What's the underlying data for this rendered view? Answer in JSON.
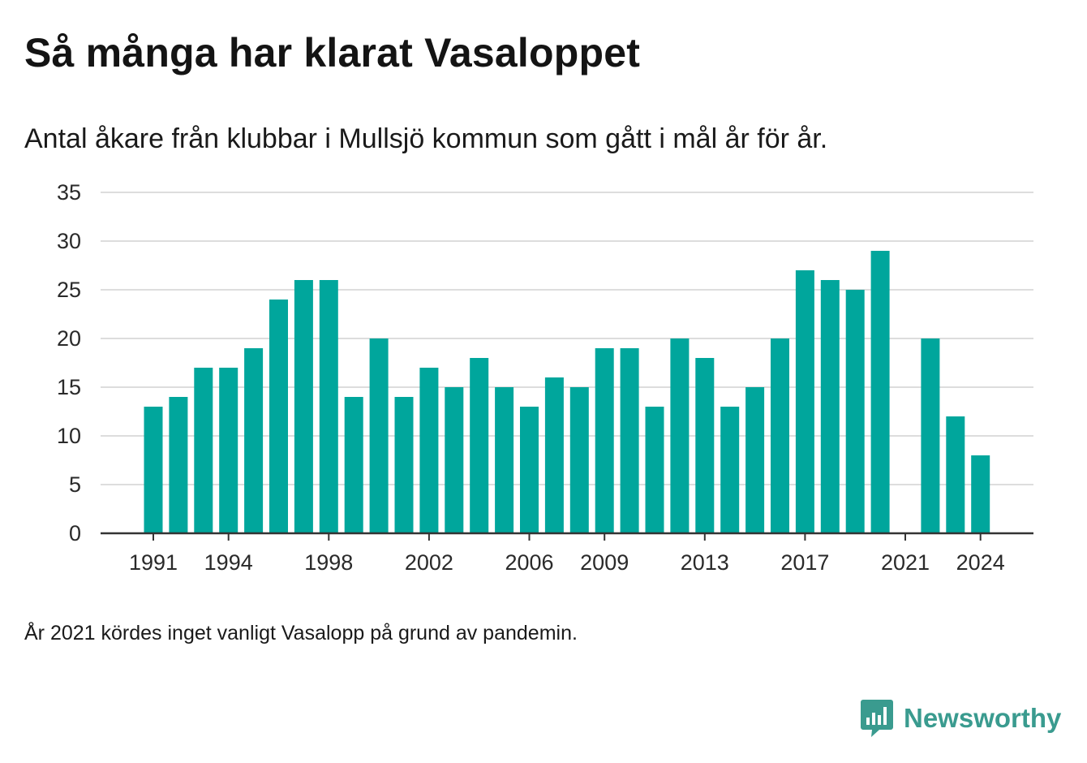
{
  "header": {
    "title": "Så många har klarat Vasaloppet",
    "subtitle": "Antal åkare från klubbar i Mullsjö kommun som gått i mål år för år."
  },
  "footnote": "År 2021 kördes inget vanligt Vasalopp på grund av pandemin.",
  "brand": {
    "name": "Newsworthy",
    "icon": "newsworthy-logo-icon",
    "color": "#3a9b8f"
  },
  "colors": {
    "bar": "#00a69c",
    "grid": "#dddddd",
    "axis": "#333333"
  },
  "chart_data": {
    "type": "bar",
    "categories": [
      1991,
      1992,
      1993,
      1994,
      1995,
      1996,
      1997,
      1998,
      1999,
      2000,
      2001,
      2002,
      2003,
      2004,
      2005,
      2006,
      2007,
      2008,
      2009,
      2010,
      2011,
      2012,
      2013,
      2014,
      2015,
      2016,
      2017,
      2018,
      2019,
      2020,
      2021,
      2022,
      2023,
      2024
    ],
    "values": [
      13,
      14,
      17,
      17,
      19,
      24,
      26,
      26,
      14,
      20,
      14,
      17,
      15,
      18,
      15,
      13,
      16,
      15,
      19,
      19,
      13,
      20,
      18,
      13,
      15,
      20,
      27,
      26,
      25,
      29,
      null,
      20,
      12,
      8
    ],
    "x_tick_labels": [
      "1991",
      "1994",
      "1998",
      "2002",
      "2006",
      "2009",
      "2013",
      "2017",
      "2021",
      "2024"
    ],
    "y_ticks": [
      0,
      5,
      10,
      15,
      20,
      25,
      30,
      35
    ],
    "ylim": [
      0,
      35
    ],
    "grid": true,
    "legend": "none"
  }
}
